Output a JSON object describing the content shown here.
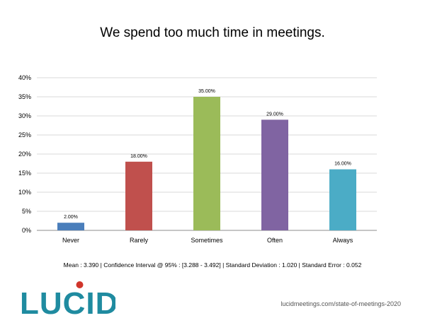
{
  "chart_data": {
    "type": "bar",
    "title": "We spend too much time in meetings.",
    "categories": [
      "Never",
      "Rarely",
      "Sometimes",
      "Often",
      "Always"
    ],
    "values": [
      2.0,
      18.0,
      35.0,
      29.0,
      16.0
    ],
    "data_labels": [
      "2.00%",
      "18.00%",
      "35.00%",
      "29.00%",
      "16.00%"
    ],
    "colors": [
      "#4a7ebb",
      "#c0504d",
      "#9bbb59",
      "#8064a2",
      "#4bacc6"
    ],
    "y_ticks": [
      0,
      5,
      10,
      15,
      20,
      25,
      30,
      35,
      40
    ],
    "y_tick_labels": [
      "0%",
      "5%",
      "10%",
      "15%",
      "20%",
      "25%",
      "30%",
      "35%",
      "40%"
    ],
    "ylim": [
      0,
      40
    ],
    "grid": true,
    "legend": "none",
    "xlabel": "",
    "ylabel": ""
  },
  "stats": {
    "text": "Mean : 3.390  |  Confidence Interval @ 95% : [3.288 - 3.492]  |  Standard Deviation : 1.020  |  Standard Error : 0.052"
  },
  "branding": {
    "logo_text": "LUCID",
    "logo_color": "#1f8ba0",
    "dot_color": "#d0352b",
    "source_url": "lucidmeetings.com/state-of-meetings-2020"
  }
}
